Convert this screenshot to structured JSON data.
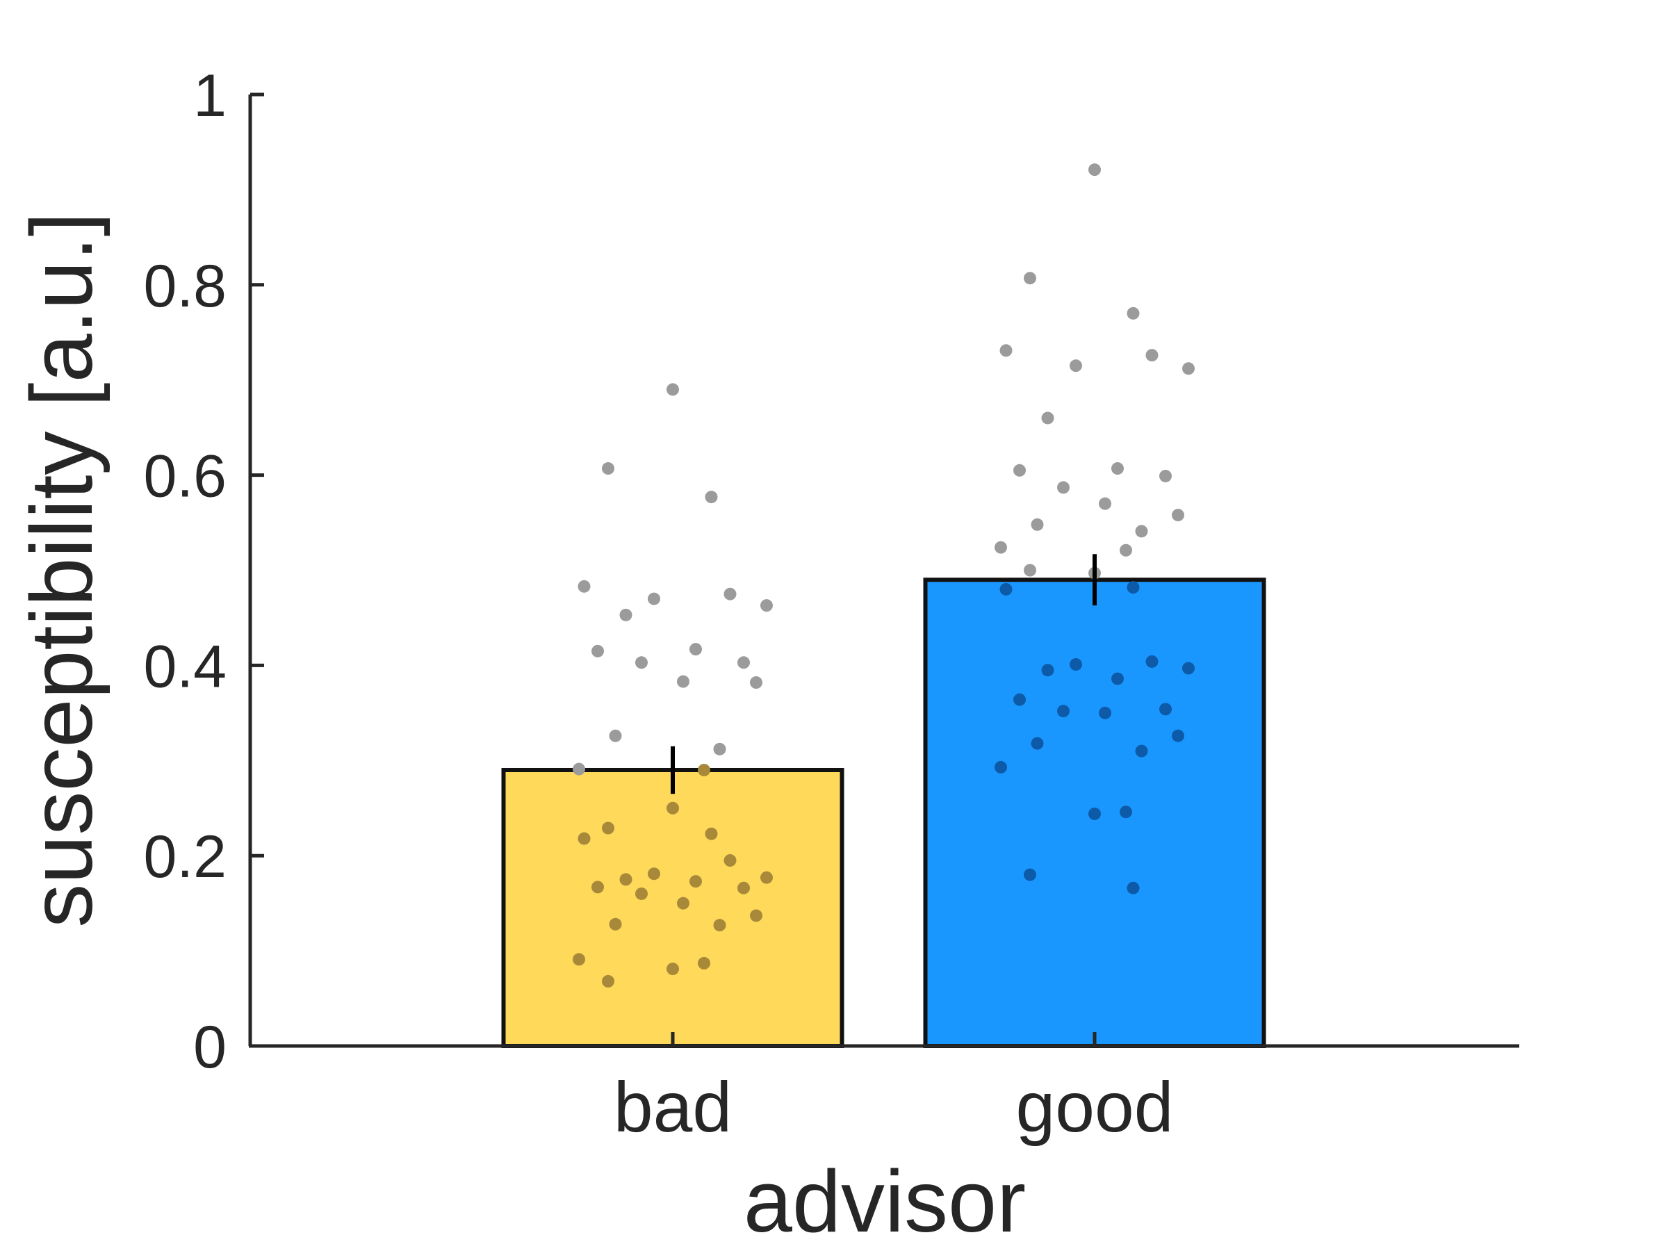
{
  "chart_data": {
    "type": "bar",
    "title": "",
    "xlabel": "advisor",
    "ylabel": "susceptibility [a.u.]",
    "ylim": [
      0,
      1
    ],
    "yticks": [
      0,
      0.2,
      0.4,
      0.6,
      0.8,
      1
    ],
    "ytick_labels": [
      "0",
      "0.2",
      "0.4",
      "0.6",
      "0.8",
      "1"
    ],
    "categories": [
      "bad",
      "good"
    ],
    "values": [
      0.29,
      0.49
    ],
    "errors": [
      0.025,
      0.027
    ],
    "bar_colors": [
      "#FFD95A",
      "#1A97FF"
    ],
    "grid": false,
    "points": [
      {
        "category": "bad",
        "values": [
          0.69,
          0.607,
          0.577,
          0.483,
          0.475,
          0.47,
          0.463,
          0.453,
          0.417,
          0.415,
          0.403,
          0.403,
          0.383,
          0.382,
          0.326,
          0.312,
          0.291,
          0.29,
          0.25,
          0.229,
          0.223,
          0.218,
          0.195,
          0.181,
          0.177,
          0.175,
          0.173,
          0.167,
          0.166,
          0.16,
          0.15,
          0.137,
          0.128,
          0.127,
          0.091,
          0.087,
          0.081,
          0.068
        ]
      },
      {
        "category": "good",
        "values": [
          0.921,
          0.807,
          0.77,
          0.731,
          0.726,
          0.715,
          0.712,
          0.66,
          0.607,
          0.605,
          0.599,
          0.587,
          0.57,
          0.558,
          0.548,
          0.541,
          0.524,
          0.521,
          0.497,
          0.5,
          0.482,
          0.48,
          0.404,
          0.401,
          0.397,
          0.395,
          0.386,
          0.364,
          0.354,
          0.352,
          0.35,
          0.326,
          0.318,
          0.31,
          0.293,
          0.246,
          0.244,
          0.18,
          0.166
        ]
      }
    ],
    "point_style": {
      "color_outside": "#9b9b9b",
      "color_inside_bad": "#a8893a",
      "color_inside_good": "#0d5aa8"
    }
  }
}
